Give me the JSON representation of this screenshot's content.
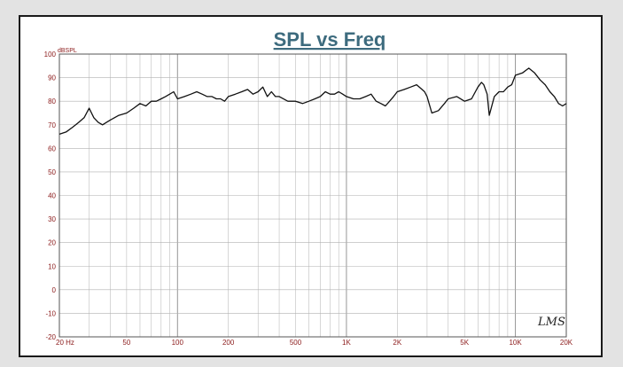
{
  "chart_data": {
    "type": "line",
    "title": "SPL vs Freq",
    "ylabel": "dBSPL",
    "xlabel": "",
    "xscale": "log",
    "xlim": [
      20,
      20000
    ],
    "ylim": [
      -20,
      100
    ],
    "yticks": [
      -20,
      -10,
      0,
      10,
      20,
      30,
      40,
      50,
      60,
      70,
      80,
      90,
      100
    ],
    "ytick_labels": [
      "-20",
      "-10",
      "0",
      "10",
      "20",
      "30",
      "40",
      "50",
      "60",
      "70",
      "80",
      "90",
      "100"
    ],
    "xticks": [
      20,
      50,
      100,
      200,
      500,
      1000,
      2000,
      5000,
      10000,
      20000
    ],
    "xtick_labels": [
      "20 Hz",
      "50",
      "100",
      "200",
      "500",
      "1K",
      "2K",
      "5K",
      "10K",
      "20K"
    ],
    "grid": true,
    "line_color": "#111111",
    "logo_text": "LMS",
    "series": [
      {
        "x": [
          20,
          22,
          24,
          26,
          28,
          30,
          32,
          34,
          36,
          38,
          40,
          45,
          50,
          55,
          60,
          65,
          70,
          75,
          80,
          85,
          90,
          95,
          100,
          110,
          120,
          130,
          140,
          150,
          160,
          170,
          180,
          190,
          200,
          220,
          240,
          260,
          280,
          300,
          320,
          340,
          360,
          380,
          400,
          450,
          500,
          550,
          600,
          650,
          700,
          750,
          800,
          850,
          900,
          950,
          1000,
          1100,
          1200,
          1300,
          1400,
          1500,
          1600,
          1700,
          1800,
          1900,
          2000,
          2200,
          2400,
          2600,
          2800,
          2900,
          3000,
          3200,
          3500,
          3800,
          4000,
          4500,
          5000,
          5500,
          6000,
          6300,
          6500,
          6800,
          7000,
          7500,
          8000,
          8500,
          9000,
          9500,
          10000,
          11000,
          12000,
          13000,
          14000,
          15000,
          16000,
          17000,
          18000,
          19000,
          20000
        ],
        "y": [
          66,
          67,
          69,
          71,
          73,
          77,
          73,
          71,
          70,
          71,
          72,
          74,
          75,
          77,
          79,
          78,
          80,
          80,
          81,
          82,
          83,
          84,
          81,
          82,
          83,
          84,
          83,
          82,
          82,
          81,
          81,
          80,
          82,
          83,
          84,
          85,
          83,
          84,
          86,
          82,
          84,
          82,
          82,
          80,
          80,
          79,
          80,
          81,
          82,
          84,
          83,
          83,
          84,
          83,
          82,
          81,
          81,
          82,
          83,
          80,
          79,
          78,
          80,
          82,
          84,
          85,
          86,
          87,
          85,
          84,
          82,
          75,
          76,
          79,
          81,
          82,
          80,
          81,
          86,
          88,
          87,
          83,
          74,
          82,
          84,
          84,
          86,
          87,
          91,
          92,
          94,
          92,
          89,
          87,
          84,
          82,
          79,
          78,
          79
        ]
      }
    ]
  }
}
